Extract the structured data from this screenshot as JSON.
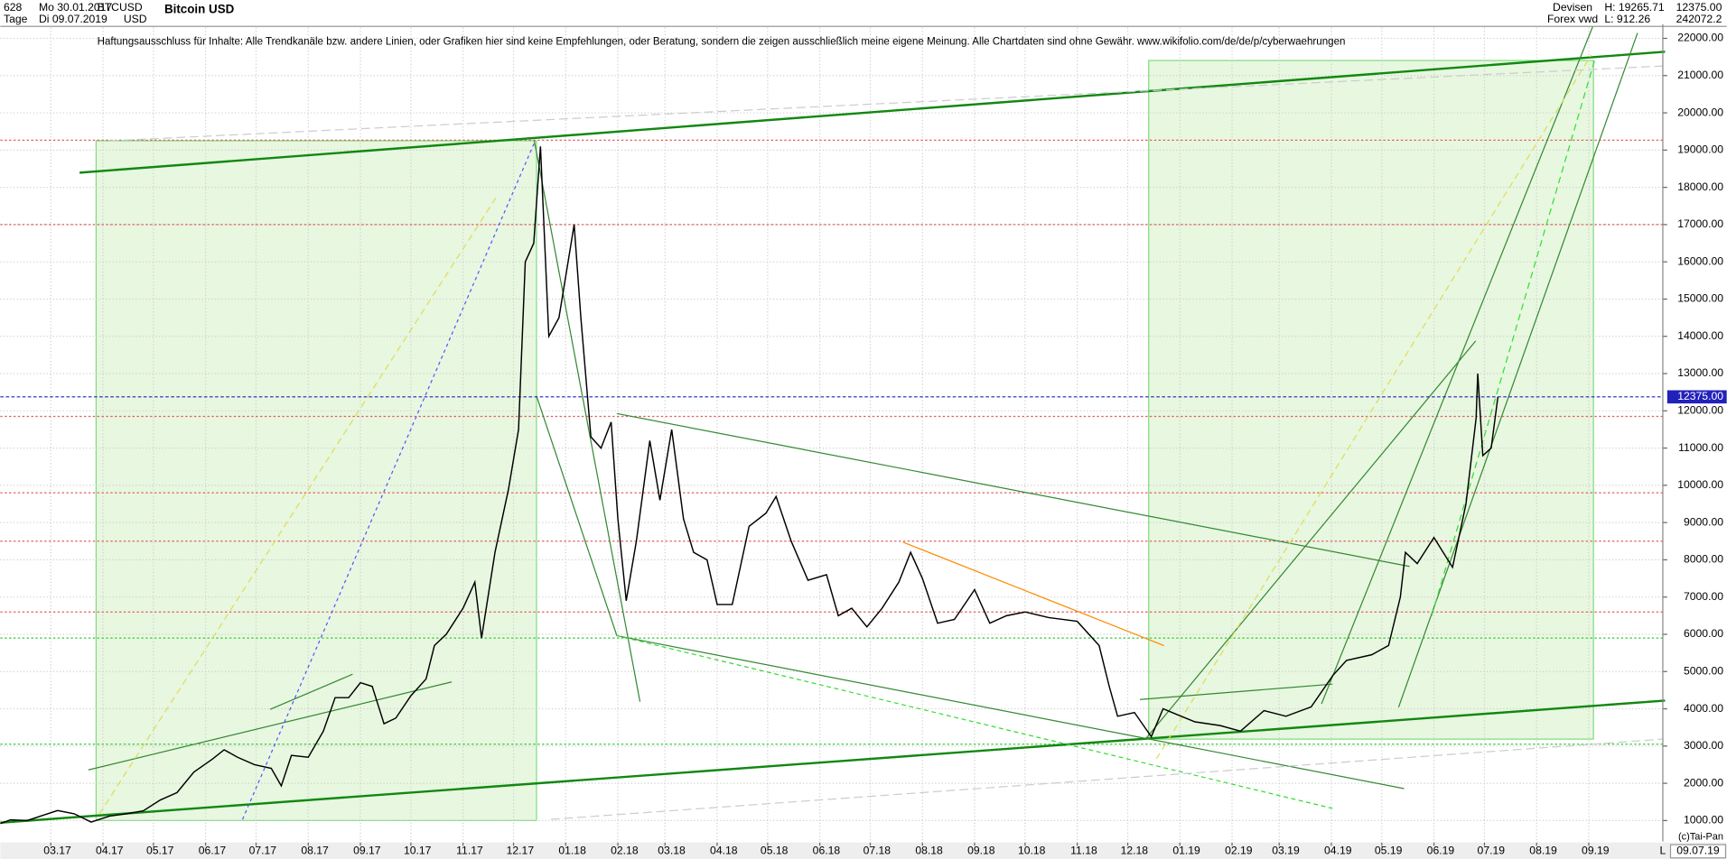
{
  "header": {
    "counter": "628",
    "period": "Tage",
    "from": "Mo 30.01.2017",
    "to": "Di 09.07.2019",
    "symbol": "BTCUSD",
    "currency": "USD",
    "market": "Devisen",
    "source": "Forex vwd",
    "high": "H: 19265.71",
    "low": "L: 912.26",
    "last": "12375.00",
    "volume": "242072.2",
    "copyright": "(c)Tai-Pan",
    "date": "09.07.19",
    "scale_mode": "L"
  },
  "chart_data": {
    "type": "line",
    "title": "Bitcoin USD",
    "annotation": "Haftungsausschluss für Inhalte: Alle Trendkanäle bzw. andere Linien, oder Grafiken hier sind keine Empfehlungen, oder Beratung, sondern die zeigen ausschließlich meine eigene Meinung. Alle Chartdaten sind ohne Gewähr.  www.wikifolio.com/de/de/p/cyberwaehrungen",
    "color": "#000000",
    "x": [
      "2017-01-30",
      "2017-02-05",
      "2017-02-15",
      "2017-02-25",
      "2017-03-05",
      "2017-03-15",
      "2017-03-25",
      "2017-04-05",
      "2017-04-15",
      "2017-04-25",
      "2017-05-05",
      "2017-05-15",
      "2017-05-25",
      "2017-06-05",
      "2017-06-12",
      "2017-06-20",
      "2017-06-30",
      "2017-07-10",
      "2017-07-16",
      "2017-07-22",
      "2017-08-01",
      "2017-08-10",
      "2017-08-17",
      "2017-08-25",
      "2017-09-01",
      "2017-09-08",
      "2017-09-15",
      "2017-09-22",
      "2017-10-01",
      "2017-10-10",
      "2017-10-15",
      "2017-10-22",
      "2017-11-01",
      "2017-11-08",
      "2017-11-12",
      "2017-11-20",
      "2017-11-28",
      "2017-12-04",
      "2017-12-08",
      "2017-12-13",
      "2017-12-17",
      "2017-12-22",
      "2017-12-28",
      "2018-01-06",
      "2018-01-10",
      "2018-01-16",
      "2018-01-22",
      "2018-01-28",
      "2018-02-01",
      "2018-02-06",
      "2018-02-12",
      "2018-02-20",
      "2018-02-26",
      "2018-03-05",
      "2018-03-12",
      "2018-03-18",
      "2018-03-26",
      "2018-04-01",
      "2018-04-10",
      "2018-04-20",
      "2018-04-30",
      "2018-05-06",
      "2018-05-15",
      "2018-05-25",
      "2018-06-05",
      "2018-06-12",
      "2018-06-20",
      "2018-06-29",
      "2018-07-08",
      "2018-07-18",
      "2018-07-25",
      "2018-08-01",
      "2018-08-10",
      "2018-08-20",
      "2018-09-01",
      "2018-09-10",
      "2018-09-20",
      "2018-10-01",
      "2018-10-15",
      "2018-11-01",
      "2018-11-14",
      "2018-11-20",
      "2018-11-25",
      "2018-12-05",
      "2018-12-15",
      "2018-12-22",
      "2018-12-30",
      "2019-01-10",
      "2019-01-25",
      "2019-02-06",
      "2019-02-20",
      "2019-03-05",
      "2019-03-20",
      "2019-04-02",
      "2019-04-10",
      "2019-04-25",
      "2019-05-05",
      "2019-05-12",
      "2019-05-15",
      "2019-05-22",
      "2019-06-01",
      "2019-06-12",
      "2019-06-20",
      "2019-06-26",
      "2019-06-27",
      "2019-06-30",
      "2019-07-05",
      "2019-07-09"
    ],
    "values": [
      920,
      1020,
      1000,
      1150,
      1270,
      1180,
      960,
      1120,
      1180,
      1260,
      1550,
      1750,
      2300,
      2650,
      2900,
      2700,
      2500,
      2400,
      1930,
      2750,
      2700,
      3400,
      4300,
      4300,
      4700,
      4600,
      3600,
      3750,
      4350,
      4800,
      5700,
      6000,
      6700,
      7400,
      5900,
      8200,
      9900,
      11500,
      16000,
      16500,
      19100,
      14000,
      14500,
      17000,
      14500,
      11300,
      11000,
      11700,
      9100,
      6900,
      8500,
      11200,
      9600,
      11500,
      9100,
      8200,
      8000,
      6800,
      6800,
      8900,
      9250,
      9700,
      8500,
      7450,
      7600,
      6500,
      6700,
      6200,
      6700,
      7400,
      8200,
      7500,
      6300,
      6400,
      7200,
      6300,
      6500,
      6600,
      6450,
      6350,
      5700,
      4600,
      3800,
      3900,
      3250,
      4000,
      3850,
      3650,
      3550,
      3400,
      3950,
      3800,
      4050,
      4900,
      5300,
      5450,
      5700,
      7000,
      8200,
      7900,
      8600,
      7800,
      9500,
      11800,
      13000,
      10800,
      11000,
      12375
    ],
    "xlim": [
      "2017-01-30",
      "2019-10-15"
    ],
    "xticks": [
      {
        "value": "2017-03-01",
        "label": "03.17"
      },
      {
        "value": "2017-04-01",
        "label": "04.17"
      },
      {
        "value": "2017-05-01",
        "label": "05.17"
      },
      {
        "value": "2017-06-01",
        "label": "06.17"
      },
      {
        "value": "2017-07-01",
        "label": "07.17"
      },
      {
        "value": "2017-08-01",
        "label": "08.17"
      },
      {
        "value": "2017-09-01",
        "label": "09.17"
      },
      {
        "value": "2017-10-01",
        "label": "10.17"
      },
      {
        "value": "2017-11-01",
        "label": "11.17"
      },
      {
        "value": "2017-12-01",
        "label": "12.17"
      },
      {
        "value": "2018-01-01",
        "label": "01.18"
      },
      {
        "value": "2018-02-01",
        "label": "02.18"
      },
      {
        "value": "2018-03-01",
        "label": "03.18"
      },
      {
        "value": "2018-04-01",
        "label": "04.18"
      },
      {
        "value": "2018-05-01",
        "label": "05.18"
      },
      {
        "value": "2018-06-01",
        "label": "06.18"
      },
      {
        "value": "2018-07-01",
        "label": "07.18"
      },
      {
        "value": "2018-08-01",
        "label": "08.18"
      },
      {
        "value": "2018-09-01",
        "label": "09.18"
      },
      {
        "value": "2018-10-01",
        "label": "10.18"
      },
      {
        "value": "2018-11-01",
        "label": "11.18"
      },
      {
        "value": "2018-12-01",
        "label": "12.18"
      },
      {
        "value": "2019-01-01",
        "label": "01.19"
      },
      {
        "value": "2019-02-01",
        "label": "02.19"
      },
      {
        "value": "2019-03-01",
        "label": "03.19"
      },
      {
        "value": "2019-04-01",
        "label": "04.19"
      },
      {
        "value": "2019-05-01",
        "label": "05.19"
      },
      {
        "value": "2019-06-01",
        "label": "06.19"
      },
      {
        "value": "2019-07-01",
        "label": "07.19"
      },
      {
        "value": "2019-08-01",
        "label": "08.19"
      },
      {
        "value": "2019-09-01",
        "label": "09.19"
      }
    ],
    "ylim": [
      440,
      22380
    ],
    "yticks": [
      {
        "value": 1000,
        "label": "1000.00"
      },
      {
        "value": 2000,
        "label": "2000.00"
      },
      {
        "value": 3000,
        "label": "3000.00"
      },
      {
        "value": 4000,
        "label": "4000.00"
      },
      {
        "value": 5000,
        "label": "5000.00"
      },
      {
        "value": 6000,
        "label": "6000.00"
      },
      {
        "value": 7000,
        "label": "7000.00"
      },
      {
        "value": 8000,
        "label": "8000.00"
      },
      {
        "value": 9000,
        "label": "9000.00"
      },
      {
        "value": 10000,
        "label": "10000.00"
      },
      {
        "value": 11000,
        "label": "11000.00"
      },
      {
        "value": 12000,
        "label": "12000.00"
      },
      {
        "value": 13000,
        "label": "13000.00"
      },
      {
        "value": 14000,
        "label": "14000.00"
      },
      {
        "value": 15000,
        "label": "15000.00"
      },
      {
        "value": 16000,
        "label": "16000.00"
      },
      {
        "value": 17000,
        "label": "17000.00"
      },
      {
        "value": 18000,
        "label": "18000.00"
      },
      {
        "value": 19000,
        "label": "19000.00"
      },
      {
        "value": 20000,
        "label": "20000.00"
      },
      {
        "value": 21000,
        "label": "21000.00"
      },
      {
        "value": 22000,
        "label": "22000.00"
      }
    ],
    "grid": true,
    "hlines": [
      {
        "value": 19265,
        "color": "#e06060"
      },
      {
        "value": 17000,
        "color": "#e06060"
      },
      {
        "value": 11850,
        "color": "#e06060"
      },
      {
        "value": 9800,
        "color": "#e06060"
      },
      {
        "value": 8500,
        "color": "#e06060"
      },
      {
        "value": 6600,
        "color": "#e06060"
      },
      {
        "value": 5900,
        "color": "#33cc33"
      },
      {
        "value": 3050,
        "color": "#33cc33"
      }
    ],
    "last_value": {
      "value": 12375,
      "label": "12375.00",
      "color": "#2222bb"
    }
  }
}
